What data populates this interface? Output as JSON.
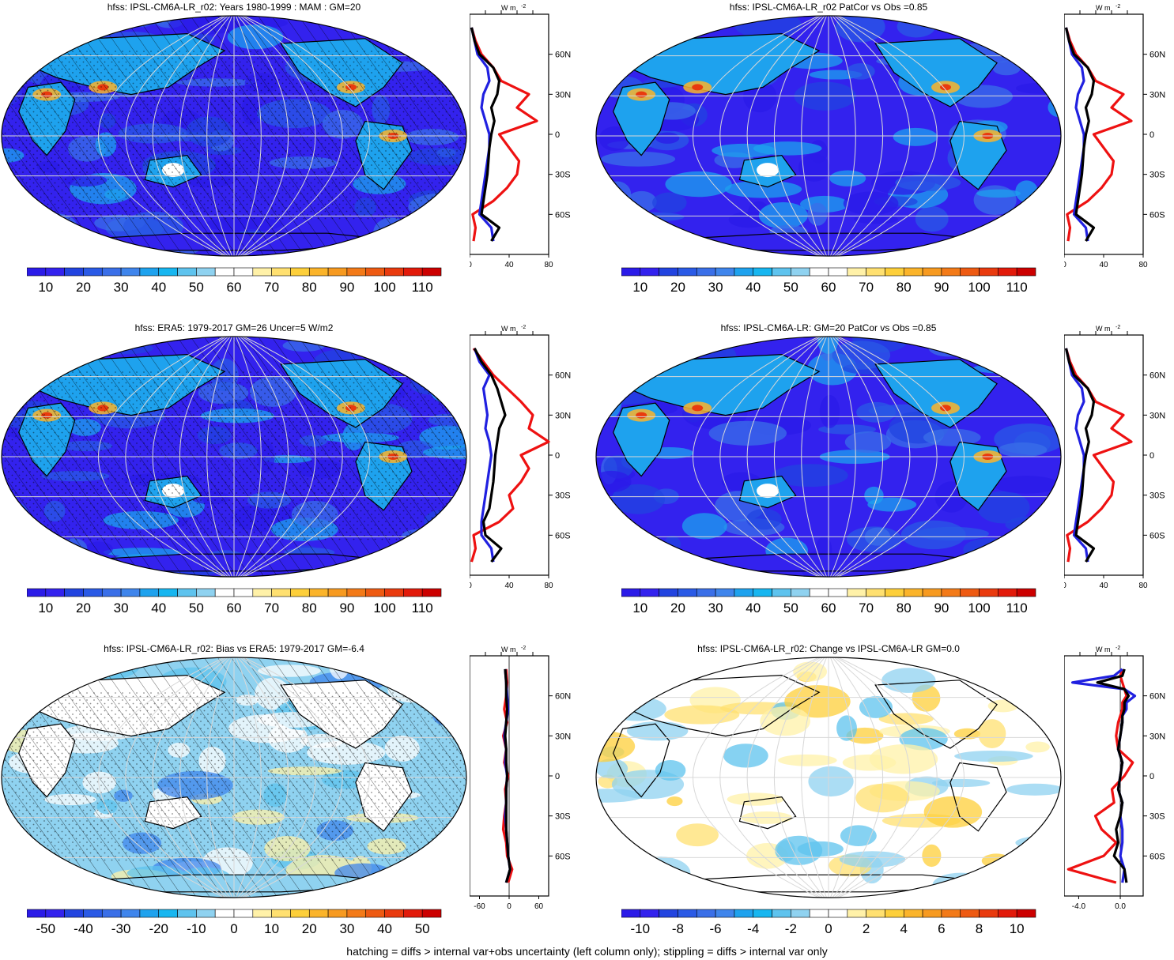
{
  "footer": "hatching = diffs > internal var+obs uncertainty (left column only); stippling = diffs > internal var only",
  "zonal_unit_label": "W m",
  "zonal_unit_sup": "-2",
  "lat_labels": [
    "60N",
    "30N",
    "0",
    "30S",
    "60S"
  ],
  "colors": {
    "model": "#2020e0",
    "obs": "#000000",
    "diff": "#ee1111",
    "land": "#000000",
    "grid": "#d8d8d8"
  },
  "full_palette": [
    "#2b1be8",
    "#3322ee",
    "#2244e0",
    "#2a5ae6",
    "#3a6fe8",
    "#3f85ec",
    "#1ea2ee",
    "#17b6f0",
    "#5ec3ee",
    "#8fd2f0",
    "#ffffff",
    "#ffffff",
    "#fff1a8",
    "#ffe070",
    "#fdcf3a",
    "#fbb42a",
    "#f79a20",
    "#f37a18",
    "#ee5a12",
    "#e93a0e",
    "#e21a0a",
    "#cc0000"
  ],
  "panels": [
    {
      "id": "model-clim",
      "title": "hfss: IPSL-CM6A-LR_r02: Years 1980-1999 : MAM : GM=20",
      "mean_field": "high",
      "hatch": true,
      "stipple": true,
      "zonal": {
        "xticks": [
          "0",
          "40",
          "80"
        ],
        "xlim": [
          0,
          80
        ]
      },
      "chart_data": {
        "type": "line",
        "x_label": "W m-2",
        "y": "latitude",
        "series": [
          {
            "name": "model",
            "lat": [
              80,
              70,
              60,
              50,
              40,
              30,
              20,
              10,
              0,
              -10,
              -20,
              -30,
              -40,
              -50,
              -60,
              -70,
              -80
            ],
            "values": [
              2,
              5,
              8,
              18,
              20,
              14,
              12,
              16,
              20,
              20,
              18,
              16,
              14,
              12,
              10,
              22,
              24
            ]
          },
          {
            "name": "obs",
            "lat": [
              80,
              70,
              60,
              50,
              40,
              30,
              20,
              10,
              0,
              -10,
              -20,
              -30,
              -40,
              -50,
              -60,
              -70,
              -80
            ],
            "values": [
              2,
              5,
              10,
              24,
              30,
              28,
              22,
              25,
              22,
              20,
              19,
              18,
              16,
              14,
              12,
              30,
              22
            ]
          },
          {
            "name": "diff",
            "lat": [
              80,
              70,
              60,
              50,
              40,
              30,
              20,
              10,
              0,
              -10,
              -20,
              -30,
              -40,
              -50,
              -60,
              -70,
              -80
            ],
            "values": [
              2,
              6,
              12,
              24,
              32,
              60,
              48,
              68,
              30,
              40,
              50,
              48,
              38,
              24,
              3,
              6,
              4
            ]
          }
        ]
      },
      "colorbar": {
        "labels": [
          "10",
          "20",
          "30",
          "40",
          "50",
          "60",
          "70",
          "80",
          "90",
          "100",
          "110"
        ]
      }
    },
    {
      "id": "model-patcor",
      "title": "hfss: IPSL-CM6A-LR_r02 PatCor vs Obs =0.85",
      "mean_field": "high",
      "hatch": false,
      "stipple": false,
      "zonal": {
        "xticks": [
          "0",
          "40",
          "80"
        ],
        "xlim": [
          0,
          80
        ]
      },
      "chart_data": {
        "type": "line",
        "x_label": "W m-2",
        "y": "latitude",
        "series": [
          {
            "name": "model",
            "lat": [
              80,
              70,
              60,
              50,
              40,
              30,
              20,
              10,
              0,
              -10,
              -20,
              -30,
              -40,
              -50,
              -60,
              -70,
              -80
            ],
            "values": [
              2,
              5,
              8,
              18,
              20,
              14,
              12,
              16,
              20,
              20,
              18,
              16,
              14,
              12,
              10,
              22,
              24
            ]
          },
          {
            "name": "obs",
            "lat": [
              80,
              70,
              60,
              50,
              40,
              30,
              20,
              10,
              0,
              -10,
              -20,
              -30,
              -40,
              -50,
              -60,
              -70,
              -80
            ],
            "values": [
              2,
              5,
              10,
              24,
              30,
              28,
              22,
              25,
              22,
              20,
              19,
              18,
              16,
              14,
              12,
              30,
              22
            ]
          },
          {
            "name": "diff",
            "lat": [
              80,
              70,
              60,
              50,
              40,
              30,
              20,
              10,
              0,
              -10,
              -20,
              -30,
              -40,
              -50,
              -60,
              -70,
              -80
            ],
            "values": [
              2,
              6,
              12,
              24,
              32,
              60,
              48,
              68,
              30,
              40,
              50,
              48,
              38,
              24,
              3,
              6,
              4
            ]
          }
        ]
      },
      "colorbar": {
        "labels": [
          "10",
          "20",
          "30",
          "40",
          "50",
          "60",
          "70",
          "80",
          "90",
          "100",
          "110"
        ]
      }
    },
    {
      "id": "era5-clim",
      "title": "hfss: ERA5: 1979-2017 GM=26 Uncer=5 W/m2",
      "mean_field": "high",
      "hatch": true,
      "stipple": true,
      "zonal": {
        "xticks": [
          "0",
          "40",
          "80"
        ],
        "xlim": [
          0,
          80
        ]
      },
      "chart_data": {
        "type": "line",
        "x_label": "W m-2",
        "y": "latitude",
        "series": [
          {
            "name": "model",
            "lat": [
              80,
              70,
              60,
              50,
              40,
              30,
              20,
              10,
              0,
              -10,
              -20,
              -30,
              -40,
              -50,
              -60,
              -70,
              -80
            ],
            "values": [
              5,
              10,
              20,
              14,
              16,
              18,
              16,
              20,
              22,
              20,
              18,
              16,
              14,
              12,
              12,
              22,
              24
            ]
          },
          {
            "name": "obs",
            "lat": [
              80,
              70,
              60,
              50,
              40,
              30,
              20,
              10,
              0,
              -10,
              -20,
              -30,
              -40,
              -50,
              -60,
              -70,
              -80
            ],
            "values": [
              5,
              12,
              22,
              28,
              32,
              36,
              30,
              28,
              26,
              25,
              24,
              22,
              20,
              14,
              16,
              32,
              22
            ]
          },
          {
            "name": "diff",
            "lat": [
              80,
              70,
              60,
              50,
              40,
              30,
              20,
              10,
              0,
              -10,
              -20,
              -30,
              -40,
              -50,
              -60,
              -70,
              -80
            ],
            "values": [
              4,
              14,
              24,
              38,
              52,
              64,
              60,
              80,
              52,
              60,
              52,
              40,
              44,
              30,
              4,
              6,
              2
            ]
          }
        ]
      },
      "colorbar": {
        "labels": [
          "10",
          "20",
          "30",
          "40",
          "50",
          "60",
          "70",
          "80",
          "90",
          "100",
          "110"
        ]
      }
    },
    {
      "id": "model-clim-2",
      "title": "hfss: IPSL-CM6A-LR: GM=20 PatCor vs Obs =0.85",
      "mean_field": "high",
      "hatch": false,
      "stipple": false,
      "zonal": {
        "xticks": [
          "0",
          "40",
          "80"
        ],
        "xlim": [
          0,
          80
        ]
      },
      "chart_data": {
        "type": "line",
        "x_label": "W m-2",
        "y": "latitude",
        "series": [
          {
            "name": "model",
            "lat": [
              80,
              70,
              60,
              50,
              40,
              30,
              20,
              10,
              0,
              -10,
              -20,
              -30,
              -40,
              -50,
              -60,
              -70,
              -80
            ],
            "values": [
              2,
              5,
              8,
              18,
              20,
              14,
              12,
              16,
              20,
              20,
              18,
              16,
              14,
              12,
              10,
              22,
              24
            ]
          },
          {
            "name": "obs",
            "lat": [
              80,
              70,
              60,
              50,
              40,
              30,
              20,
              10,
              0,
              -10,
              -20,
              -30,
              -40,
              -50,
              -60,
              -70,
              -80
            ],
            "values": [
              2,
              5,
              10,
              24,
              30,
              28,
              22,
              25,
              22,
              20,
              19,
              18,
              16,
              14,
              12,
              30,
              22
            ]
          },
          {
            "name": "diff",
            "lat": [
              80,
              70,
              60,
              50,
              40,
              30,
              20,
              10,
              0,
              -10,
              -20,
              -30,
              -40,
              -50,
              -60,
              -70,
              -80
            ],
            "values": [
              2,
              6,
              12,
              24,
              32,
              60,
              48,
              68,
              30,
              40,
              50,
              48,
              38,
              24,
              3,
              6,
              4
            ]
          }
        ]
      },
      "colorbar": {
        "labels": [
          "10",
          "20",
          "30",
          "40",
          "50",
          "60",
          "70",
          "80",
          "90",
          "100",
          "110"
        ]
      }
    },
    {
      "id": "bias",
      "title": "hfss: IPSL-CM6A-LR_r02: Bias vs ERA5: 1979-2017 GM=-6.4",
      "mean_field": "bias",
      "hatch": true,
      "stipple": true,
      "zonal": {
        "xticks": [
          "-60",
          "0",
          "60"
        ],
        "xlim": [
          -80,
          80
        ]
      },
      "chart_data": {
        "type": "line",
        "x_label": "W m-2",
        "y": "latitude",
        "series": [
          {
            "name": "model",
            "lat": [
              80,
              70,
              60,
              50,
              40,
              30,
              20,
              10,
              0,
              -10,
              -20,
              -30,
              -40,
              -50,
              -60,
              -70,
              -80
            ],
            "values": [
              -8,
              -6,
              -4,
              -2,
              -6,
              -10,
              -6,
              -8,
              -4,
              -6,
              -6,
              -8,
              -6,
              -4,
              -2,
              2,
              -6
            ]
          },
          {
            "name": "obs",
            "lat": [
              80,
              70,
              60,
              50,
              40,
              30,
              20,
              10,
              0,
              -10,
              -20,
              -30,
              -40,
              -50,
              -60,
              -70,
              -80
            ],
            "values": [
              -8,
              -6,
              -6,
              -4,
              -6,
              -8,
              -6,
              -6,
              -4,
              -6,
              -6,
              -6,
              -6,
              -4,
              -2,
              2,
              -6
            ]
          },
          {
            "name": "diff",
            "lat": [
              80,
              70,
              60,
              50,
              40,
              30,
              20,
              10,
              0,
              -10,
              -20,
              -30,
              -40,
              -50,
              -60,
              -70,
              -80
            ],
            "values": [
              -6,
              -4,
              -6,
              -10,
              -4,
              -12,
              -6,
              -10,
              -2,
              -8,
              -6,
              -10,
              -12,
              -6,
              -4,
              6,
              -2
            ]
          }
        ]
      },
      "colorbar": {
        "labels": [
          "-50",
          "-40",
          "-30",
          "-20",
          "-10",
          "0",
          "10",
          "20",
          "30",
          "40",
          "50"
        ]
      }
    },
    {
      "id": "change",
      "title": "hfss: IPSL-CM6A-LR_r02: Change vs IPSL-CM6A-LR GM=0.0",
      "mean_field": "change",
      "hatch": false,
      "stipple": false,
      "zonal": {
        "xticks": [
          "-4.0",
          "0.0"
        ],
        "xlim": [
          -5.4,
          2.2
        ]
      },
      "chart_data": {
        "type": "line",
        "x_label": "W m-2",
        "y": "latitude",
        "series": [
          {
            "name": "model",
            "lat": [
              80,
              75,
              70,
              65,
              60,
              55,
              50,
              45,
              40,
              30,
              20,
              10,
              0,
              -10,
              -20,
              -30,
              -40,
              -50,
              -60,
              -70,
              -80
            ],
            "values": [
              0.2,
              -0.6,
              -4.6,
              0.4,
              1.4,
              0.6,
              0.6,
              0.2,
              0.2,
              0.0,
              -0.2,
              0.2,
              0.0,
              -0.2,
              0.2,
              0.0,
              0.2,
              0.2,
              0.0,
              0.4,
              0.2
            ]
          },
          {
            "name": "obs",
            "lat": [
              80,
              75,
              70,
              65,
              60,
              55,
              50,
              45,
              40,
              30,
              20,
              10,
              0,
              -10,
              -20,
              -30,
              -40,
              -50,
              -60,
              -70,
              -80
            ],
            "values": [
              0.4,
              0.2,
              -2.2,
              0.4,
              0.8,
              0.4,
              0.4,
              0.2,
              0.2,
              0.0,
              -0.2,
              0.2,
              0.0,
              -0.2,
              0.2,
              0.0,
              -0.4,
              -0.2,
              -0.6,
              0.4,
              0.6
            ]
          },
          {
            "name": "diff",
            "lat": [
              80,
              75,
              70,
              65,
              60,
              55,
              50,
              45,
              40,
              30,
              20,
              10,
              0,
              -10,
              -20,
              -30,
              -40,
              -50,
              -60,
              -70,
              -80
            ],
            "values": [
              0.2,
              0.0,
              0.2,
              0.4,
              0.6,
              0.2,
              0.2,
              0.0,
              -0.2,
              -0.4,
              -0.2,
              1.2,
              0.4,
              -0.8,
              -0.6,
              -2.4,
              -1.8,
              -0.4,
              -1.6,
              -5.0,
              -0.4
            ]
          }
        ]
      },
      "colorbar": {
        "labels": [
          "-10",
          "-8",
          "-6",
          "-4",
          "-2",
          "0",
          "2",
          "4",
          "6",
          "8",
          "10"
        ]
      }
    }
  ]
}
